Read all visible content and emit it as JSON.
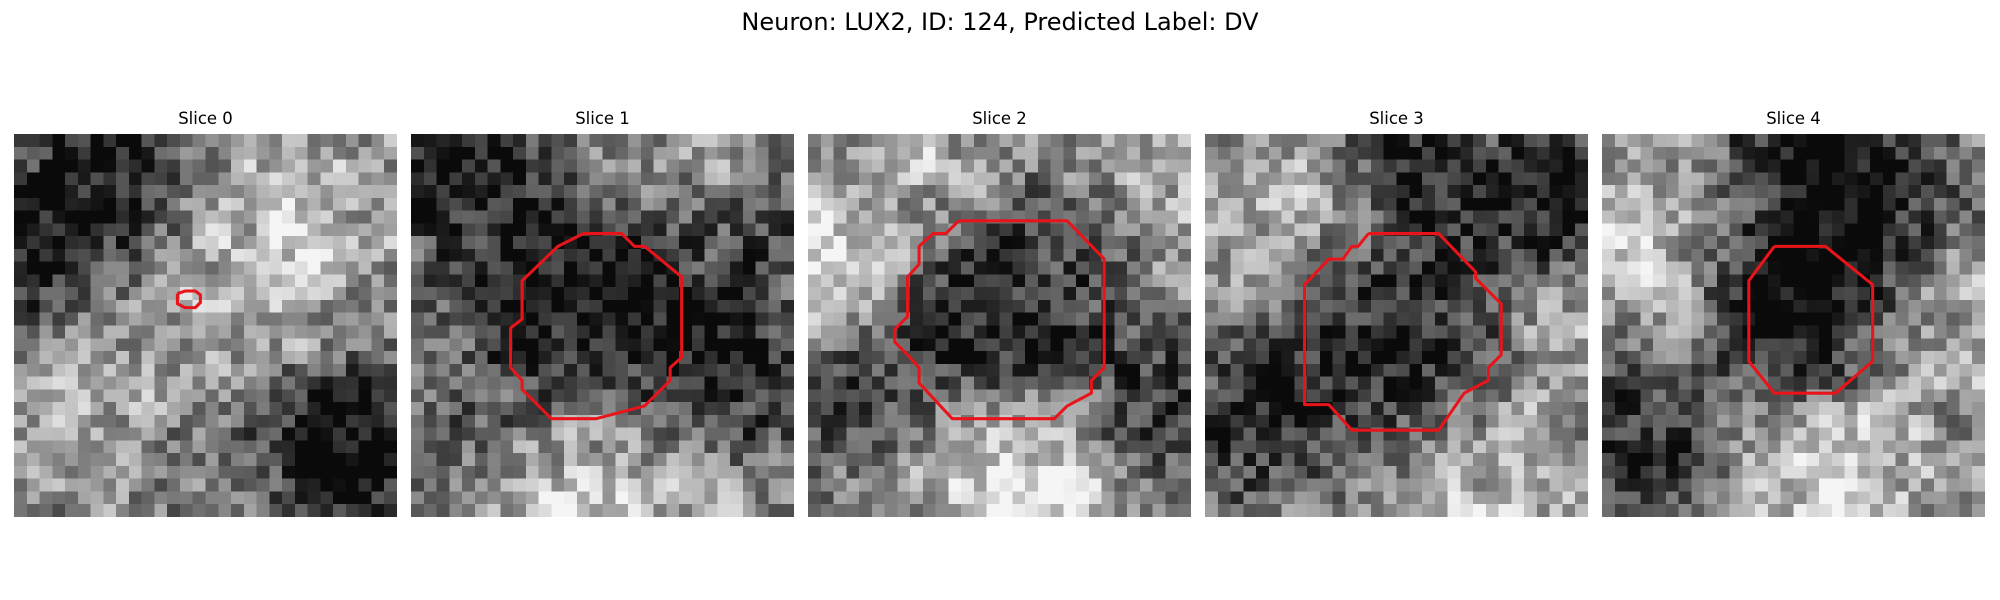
{
  "title": "Neuron: LUX2, ID: 124, Predicted Label: DV",
  "outline_color": "#e8141a",
  "panels": [
    {
      "label": "Slice 0",
      "seed": 11,
      "blobs": [
        {
          "x": 2,
          "y": 9,
          "r": 6,
          "v": -0.55
        },
        {
          "x": 9,
          "y": 1,
          "r": 5,
          "v": -0.35
        },
        {
          "x": 13,
          "y": 23,
          "r": 6,
          "v": -0.25
        },
        {
          "x": 26,
          "y": 24,
          "r": 6,
          "v": -0.6
        },
        {
          "x": 8,
          "y": 18,
          "r": 7,
          "v": 0.3
        },
        {
          "x": 18,
          "y": 5,
          "r": 7,
          "v": 0.2
        },
        {
          "x": 24,
          "y": 14,
          "r": 4,
          "v": 0.15
        },
        {
          "x": 19,
          "y": 27,
          "r": 5,
          "v": 0.15
        }
      ],
      "outline": [
        [
          12.8,
          12.5
        ],
        [
          13.4,
          12.3
        ],
        [
          14.2,
          12.3
        ],
        [
          14.6,
          12.6
        ],
        [
          14.6,
          13.2
        ],
        [
          14.2,
          13.6
        ],
        [
          13.4,
          13.6
        ],
        [
          12.8,
          13.3
        ],
        [
          12.8,
          12.5
        ]
      ]
    },
    {
      "label": "Slice 1",
      "seed": 23,
      "blobs": [
        {
          "x": 14,
          "y": 13,
          "r": 7,
          "v": -0.55
        },
        {
          "x": 3,
          "y": 2,
          "r": 5,
          "v": -0.45
        },
        {
          "x": 27,
          "y": 8,
          "r": 4,
          "v": -0.2
        },
        {
          "x": 26,
          "y": 19,
          "r": 5,
          "v": -0.3
        },
        {
          "x": 14,
          "y": 27,
          "r": 6,
          "v": 0.3
        },
        {
          "x": 20,
          "y": 3,
          "r": 6,
          "v": 0.15
        },
        {
          "x": 4,
          "y": 22,
          "r": 4,
          "v": -0.15
        }
      ],
      "outline": [
        [
          13.5,
          7.8
        ],
        [
          16.5,
          7.8
        ],
        [
          17.5,
          8.8
        ],
        [
          18.3,
          8.8
        ],
        [
          21.2,
          11.2
        ],
        [
          21.2,
          17.5
        ],
        [
          20.3,
          18.3
        ],
        [
          20.3,
          19.3
        ],
        [
          18.3,
          21.3
        ],
        [
          14.5,
          22.3
        ],
        [
          11.0,
          22.3
        ],
        [
          8.7,
          20.0
        ],
        [
          8.7,
          19.3
        ],
        [
          7.8,
          18.3
        ],
        [
          7.8,
          15.2
        ],
        [
          8.7,
          14.5
        ],
        [
          8.7,
          11.5
        ],
        [
          11.5,
          8.8
        ],
        [
          13.5,
          7.8
        ]
      ]
    },
    {
      "label": "Slice 2",
      "seed": 37,
      "blobs": [
        {
          "x": 15,
          "y": 14,
          "r": 7,
          "v": -0.5
        },
        {
          "x": 1,
          "y": 10,
          "r": 4,
          "v": 0.35
        },
        {
          "x": 8,
          "y": 2,
          "r": 5,
          "v": 0.2
        },
        {
          "x": 16,
          "y": 26,
          "r": 6,
          "v": 0.4
        },
        {
          "x": 27,
          "y": 22,
          "r": 4,
          "v": -0.35
        },
        {
          "x": 26,
          "y": 4,
          "r": 5,
          "v": 0.1
        },
        {
          "x": 2,
          "y": 20,
          "r": 4,
          "v": -0.3
        }
      ],
      "outline": [
        [
          11.8,
          6.8
        ],
        [
          20.3,
          6.8
        ],
        [
          23.2,
          9.8
        ],
        [
          23.2,
          18.3
        ],
        [
          22.2,
          19.3
        ],
        [
          22.2,
          20.3
        ],
        [
          20.3,
          21.3
        ],
        [
          19.3,
          22.3
        ],
        [
          11.3,
          22.3
        ],
        [
          8.7,
          19.5
        ],
        [
          8.7,
          18.3
        ],
        [
          7.8,
          17.3
        ],
        [
          6.8,
          16.3
        ],
        [
          6.8,
          15.3
        ],
        [
          7.8,
          14.3
        ],
        [
          7.8,
          11.2
        ],
        [
          8.7,
          10.2
        ],
        [
          8.7,
          8.8
        ],
        [
          9.8,
          7.8
        ],
        [
          10.8,
          7.8
        ],
        [
          11.8,
          6.8
        ]
      ]
    },
    {
      "label": "Slice 3",
      "seed": 53,
      "blobs": [
        {
          "x": 15,
          "y": 15,
          "r": 7,
          "v": -0.4
        },
        {
          "x": 27,
          "y": 4,
          "r": 4,
          "v": -0.5
        },
        {
          "x": 16,
          "y": 3,
          "r": 4,
          "v": -0.35
        },
        {
          "x": 3,
          "y": 22,
          "r": 5,
          "v": -0.35
        },
        {
          "x": 22,
          "y": 27,
          "r": 5,
          "v": 0.25
        },
        {
          "x": 6,
          "y": 6,
          "r": 5,
          "v": 0.25
        },
        {
          "x": 27,
          "y": 15,
          "r": 4,
          "v": 0.15
        }
      ],
      "outline": [
        [
          12.8,
          7.8
        ],
        [
          18.3,
          7.8
        ],
        [
          21.2,
          10.8
        ],
        [
          21.2,
          11.3
        ],
        [
          23.2,
          13.3
        ],
        [
          23.2,
          17.3
        ],
        [
          22.2,
          18.3
        ],
        [
          22.2,
          19.3
        ],
        [
          20.3,
          20.3
        ],
        [
          18.3,
          23.2
        ],
        [
          11.5,
          23.2
        ],
        [
          9.7,
          21.2
        ],
        [
          7.8,
          21.2
        ],
        [
          7.8,
          11.8
        ],
        [
          9.7,
          9.8
        ],
        [
          10.8,
          9.8
        ],
        [
          11.5,
          8.8
        ],
        [
          12.0,
          8.8
        ],
        [
          12.8,
          7.8
        ]
      ]
    },
    {
      "label": "Slice 4",
      "seed": 71,
      "blobs": [
        {
          "x": 15,
          "y": 15,
          "r": 5,
          "v": -0.55
        },
        {
          "x": 17,
          "y": 3,
          "r": 7,
          "v": -0.6
        },
        {
          "x": 2,
          "y": 24,
          "r": 5,
          "v": -0.45
        },
        {
          "x": 4,
          "y": 6,
          "r": 6,
          "v": 0.3
        },
        {
          "x": 18,
          "y": 25,
          "r": 7,
          "v": 0.35
        },
        {
          "x": 28,
          "y": 12,
          "r": 4,
          "v": 0.2
        },
        {
          "x": 27,
          "y": 27,
          "r": 4,
          "v": -0.15
        }
      ],
      "outline": [
        [
          13.5,
          8.8
        ],
        [
          17.5,
          8.8
        ],
        [
          21.2,
          11.8
        ],
        [
          21.2,
          17.8
        ],
        [
          18.3,
          20.3
        ],
        [
          13.5,
          20.3
        ],
        [
          11.5,
          17.8
        ],
        [
          11.5,
          11.5
        ],
        [
          13.5,
          8.8
        ]
      ]
    }
  ]
}
